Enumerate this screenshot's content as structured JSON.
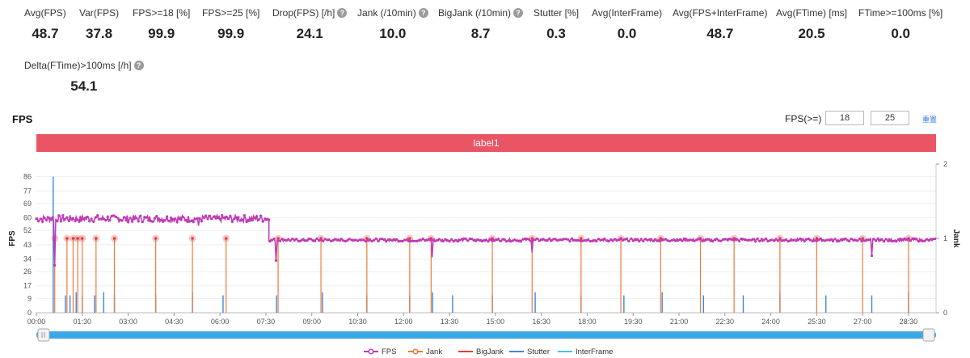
{
  "metrics": [
    {
      "label": "Avg(FPS)",
      "value": "48.7",
      "help": false
    },
    {
      "label": "Var(FPS)",
      "value": "37.8",
      "help": false
    },
    {
      "label": "FPS>=18 [%]",
      "value": "99.9",
      "help": false
    },
    {
      "label": "FPS>=25 [%]",
      "value": "99.9",
      "help": false
    },
    {
      "label": "Drop(FPS) [/h]",
      "value": "24.1",
      "help": true
    },
    {
      "label": "Jank (/10min)",
      "value": "10.0",
      "help": true
    },
    {
      "label": "BigJank (/10min)",
      "value": "8.7",
      "help": true
    },
    {
      "label": "Stutter [%]",
      "value": "0.3",
      "help": false
    },
    {
      "label": "Avg(InterFrame)",
      "value": "0.0",
      "help": false
    },
    {
      "label": "Avg(FPS+InterFrame)",
      "value": "48.7",
      "help": false
    },
    {
      "label": "Avg(FTime) [ms]",
      "value": "20.5",
      "help": false
    },
    {
      "label": "FTime>=100ms [%]",
      "value": "0.0",
      "help": false
    },
    {
      "label": "Delta(FTime)>100ms [/h]",
      "value": "54.1",
      "help": true
    }
  ],
  "fps_section": {
    "title": "FPS",
    "threshold_label": "FPS(>=)",
    "threshold_low": "18",
    "threshold_high": "25",
    "reset_label": "重置",
    "label_bar": "label1"
  },
  "colors": {
    "fps": "#c03ab6",
    "jank": "#f07a3a",
    "bigjank": "#e0413f",
    "stutter": "#3d86e0",
    "interframe": "#46c2ee",
    "label_bar": "#ea5566",
    "scrollbar": "#3ba7e6"
  },
  "chart_data": {
    "type": "line",
    "y_ticks": [
      "0",
      "9",
      "17",
      "26",
      "34",
      "43",
      "52",
      "60",
      "69",
      "77",
      "86"
    ],
    "y2_ticks": [
      "0",
      "1",
      "2"
    ],
    "x_ticks": [
      "00:00",
      "01:30",
      "03:00",
      "04:30",
      "06:00",
      "07:30",
      "09:00",
      "10:30",
      "12:00",
      "13:30",
      "15:00",
      "16:30",
      "18:00",
      "19:30",
      "21:00",
      "22:30",
      "24:00",
      "25:30",
      "27:00",
      "28:30"
    ],
    "ylabel": "FPS",
    "y2label": "Jank",
    "ylim": [
      0,
      94
    ],
    "y2lim": [
      0,
      2
    ],
    "xlim_minutes": [
      0,
      29.4
    ],
    "fps_segments": [
      {
        "start_min": 0,
        "end_min": 7.6,
        "avg": 59.5
      },
      {
        "start_min": 7.6,
        "end_min": 29.4,
        "avg": 46
      }
    ],
    "stutter_spike_minutes": [
      0.55,
      0.95,
      1.1,
      1.3,
      1.5,
      1.9,
      2.2,
      2.55,
      3.9,
      5.1,
      6.1,
      7.85,
      9.35,
      10.8,
      12.2,
      12.95,
      13.6,
      14.9,
      16.3,
      17.8,
      19.2,
      20.45,
      21.8,
      23.1,
      24.3,
      25.8,
      27.3,
      28.5
    ],
    "jank_event_minutes": [
      0.6,
      1.0,
      1.2,
      1.35,
      1.5,
      1.95,
      2.55,
      3.9,
      5.1,
      6.2,
      7.9,
      9.3,
      10.8,
      12.2,
      12.9,
      14.9,
      16.2,
      17.8,
      19.1,
      20.4,
      21.7,
      22.8,
      24.3,
      25.5,
      27.0,
      28.5
    ],
    "max_spike_fps": 86,
    "legend": [
      "FPS",
      "Jank",
      "BigJank",
      "Stutter",
      "InterFrame"
    ],
    "legend_position": "bottom"
  }
}
